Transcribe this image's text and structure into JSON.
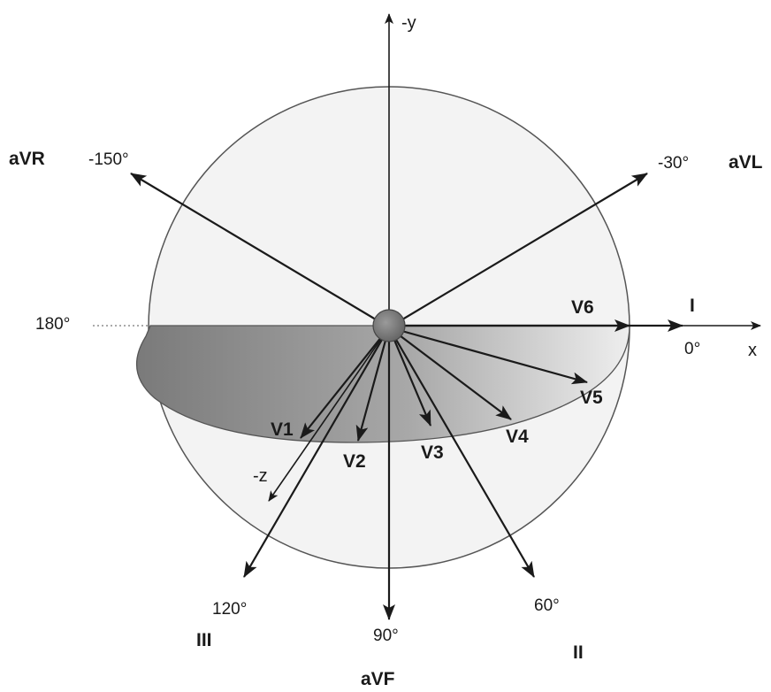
{
  "axes": {
    "neg_y": "-y",
    "x": "x",
    "neg_z": "-z"
  },
  "angles": {
    "a0": "0°",
    "a_neg30": "-30°",
    "a_neg150": "-150°",
    "a180": "180°",
    "a60": "60°",
    "a90": "90°",
    "a120": "120°"
  },
  "limb_leads": {
    "I": "I",
    "II": "II",
    "III": "III",
    "aVR": "aVR",
    "aVL": "aVL",
    "aVF": "aVF"
  },
  "chest_leads": {
    "V1": "V1",
    "V2": "V2",
    "V3": "V3",
    "V4": "V4",
    "V5": "V5",
    "V6": "V6"
  },
  "colors": {
    "sphere_fill": "#f2f2f2",
    "sphere_stroke": "#555555",
    "disc_dark": "#7a7a7a",
    "disc_light": "#e6e6e6",
    "ink": "#1a1a1a",
    "center_dot": "#7d7d7d"
  }
}
